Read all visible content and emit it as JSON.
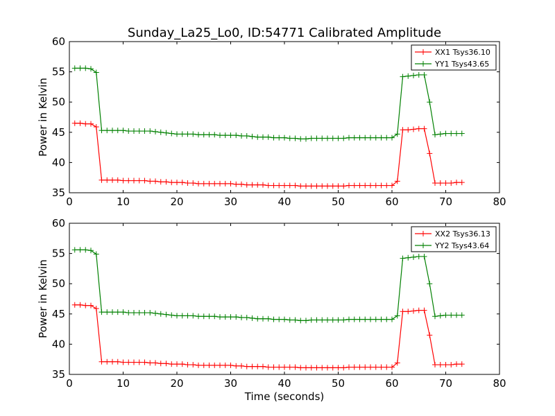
{
  "figure_title": "Sunday_La25_Lo0, ID:54771 Calibrated Amplitude",
  "chart_data": [
    {
      "type": "line",
      "title": "Sunday_La25_Lo0, ID:54771 Calibrated Amplitude",
      "xlabel": "",
      "ylabel": "Power in Kelvin",
      "xlim": [
        0,
        80
      ],
      "ylim": [
        35,
        60
      ],
      "xticks": [
        0,
        10,
        20,
        30,
        40,
        50,
        60,
        70,
        80
      ],
      "yticks": [
        35,
        40,
        45,
        50,
        55,
        60
      ],
      "grid": false,
      "legend": "top-right",
      "x": [
        1,
        2,
        3,
        4,
        5,
        6,
        7,
        8,
        9,
        10,
        11,
        12,
        13,
        14,
        15,
        16,
        17,
        18,
        19,
        20,
        21,
        22,
        23,
        24,
        25,
        26,
        27,
        28,
        29,
        30,
        31,
        32,
        33,
        34,
        35,
        36,
        37,
        38,
        39,
        40,
        41,
        42,
        43,
        44,
        45,
        46,
        47,
        48,
        49,
        50,
        51,
        52,
        53,
        54,
        55,
        56,
        57,
        58,
        59,
        60,
        61,
        62,
        63,
        64,
        65,
        66,
        67,
        68,
        69,
        70,
        71,
        72,
        73
      ],
      "series": [
        {
          "name": "XX1 Tsys36.10",
          "color": "#ff0000",
          "values": [
            46.5,
            46.5,
            46.4,
            46.4,
            45.9,
            37.1,
            37.1,
            37.1,
            37.1,
            37.0,
            37.0,
            37.0,
            37.0,
            37.0,
            36.9,
            36.9,
            36.8,
            36.8,
            36.7,
            36.7,
            36.7,
            36.6,
            36.6,
            36.5,
            36.5,
            36.5,
            36.5,
            36.5,
            36.5,
            36.5,
            36.4,
            36.4,
            36.3,
            36.3,
            36.3,
            36.3,
            36.2,
            36.2,
            36.2,
            36.2,
            36.2,
            36.2,
            36.1,
            36.1,
            36.1,
            36.1,
            36.1,
            36.1,
            36.1,
            36.1,
            36.1,
            36.2,
            36.2,
            36.2,
            36.2,
            36.2,
            36.2,
            36.2,
            36.2,
            36.2,
            36.9,
            45.4,
            45.4,
            45.5,
            45.6,
            45.6,
            41.5,
            36.6,
            36.6,
            36.6,
            36.6,
            36.7,
            36.7
          ]
        },
        {
          "name": "YY1 Tsys43.65",
          "color": "#008000",
          "values": [
            55.6,
            55.6,
            55.6,
            55.5,
            54.9,
            45.3,
            45.3,
            45.3,
            45.3,
            45.3,
            45.2,
            45.2,
            45.2,
            45.2,
            45.2,
            45.1,
            45.0,
            44.9,
            44.8,
            44.7,
            44.7,
            44.7,
            44.7,
            44.6,
            44.6,
            44.6,
            44.6,
            44.5,
            44.5,
            44.5,
            44.5,
            44.4,
            44.4,
            44.3,
            44.2,
            44.2,
            44.2,
            44.1,
            44.1,
            44.1,
            44.0,
            44.0,
            43.9,
            43.9,
            44.0,
            44.0,
            44.0,
            44.0,
            44.0,
            44.0,
            44.0,
            44.1,
            44.1,
            44.1,
            44.1,
            44.1,
            44.1,
            44.1,
            44.1,
            44.1,
            44.7,
            54.2,
            54.3,
            54.4,
            54.5,
            54.5,
            50.0,
            44.6,
            44.7,
            44.8,
            44.8,
            44.8,
            44.8
          ]
        }
      ]
    },
    {
      "type": "line",
      "title": "",
      "xlabel": "Time (seconds)",
      "ylabel": "Power in Kelvin",
      "xlim": [
        0,
        80
      ],
      "ylim": [
        35,
        60
      ],
      "xticks": [
        0,
        10,
        20,
        30,
        40,
        50,
        60,
        70,
        80
      ],
      "yticks": [
        35,
        40,
        45,
        50,
        55,
        60
      ],
      "grid": false,
      "legend": "top-right",
      "x": [
        1,
        2,
        3,
        4,
        5,
        6,
        7,
        8,
        9,
        10,
        11,
        12,
        13,
        14,
        15,
        16,
        17,
        18,
        19,
        20,
        21,
        22,
        23,
        24,
        25,
        26,
        27,
        28,
        29,
        30,
        31,
        32,
        33,
        34,
        35,
        36,
        37,
        38,
        39,
        40,
        41,
        42,
        43,
        44,
        45,
        46,
        47,
        48,
        49,
        50,
        51,
        52,
        53,
        54,
        55,
        56,
        57,
        58,
        59,
        60,
        61,
        62,
        63,
        64,
        65,
        66,
        67,
        68,
        69,
        70,
        71,
        72,
        73
      ],
      "series": [
        {
          "name": "XX2 Tsys36.13",
          "color": "#ff0000",
          "values": [
            46.5,
            46.5,
            46.4,
            46.4,
            45.9,
            37.1,
            37.1,
            37.1,
            37.1,
            37.0,
            37.0,
            37.0,
            37.0,
            37.0,
            36.9,
            36.9,
            36.8,
            36.8,
            36.7,
            36.7,
            36.7,
            36.6,
            36.6,
            36.5,
            36.5,
            36.5,
            36.5,
            36.5,
            36.5,
            36.5,
            36.4,
            36.4,
            36.3,
            36.3,
            36.3,
            36.3,
            36.2,
            36.2,
            36.2,
            36.2,
            36.2,
            36.2,
            36.1,
            36.1,
            36.1,
            36.1,
            36.1,
            36.1,
            36.1,
            36.1,
            36.1,
            36.2,
            36.2,
            36.2,
            36.2,
            36.2,
            36.2,
            36.2,
            36.2,
            36.2,
            36.9,
            45.4,
            45.4,
            45.5,
            45.6,
            45.6,
            41.5,
            36.6,
            36.6,
            36.6,
            36.6,
            36.7,
            36.7
          ]
        },
        {
          "name": "YY2 Tsys43.64",
          "color": "#008000",
          "values": [
            55.6,
            55.6,
            55.6,
            55.5,
            54.9,
            45.3,
            45.3,
            45.3,
            45.3,
            45.3,
            45.2,
            45.2,
            45.2,
            45.2,
            45.2,
            45.1,
            45.0,
            44.9,
            44.8,
            44.7,
            44.7,
            44.7,
            44.7,
            44.6,
            44.6,
            44.6,
            44.6,
            44.5,
            44.5,
            44.5,
            44.5,
            44.4,
            44.4,
            44.3,
            44.2,
            44.2,
            44.2,
            44.1,
            44.1,
            44.1,
            44.0,
            44.0,
            43.9,
            43.9,
            44.0,
            44.0,
            44.0,
            44.0,
            44.0,
            44.0,
            44.0,
            44.1,
            44.1,
            44.1,
            44.1,
            44.1,
            44.1,
            44.1,
            44.1,
            44.1,
            44.7,
            54.2,
            54.3,
            54.4,
            54.5,
            54.5,
            50.0,
            44.6,
            44.7,
            44.8,
            44.8,
            44.8,
            44.8
          ]
        }
      ]
    }
  ]
}
